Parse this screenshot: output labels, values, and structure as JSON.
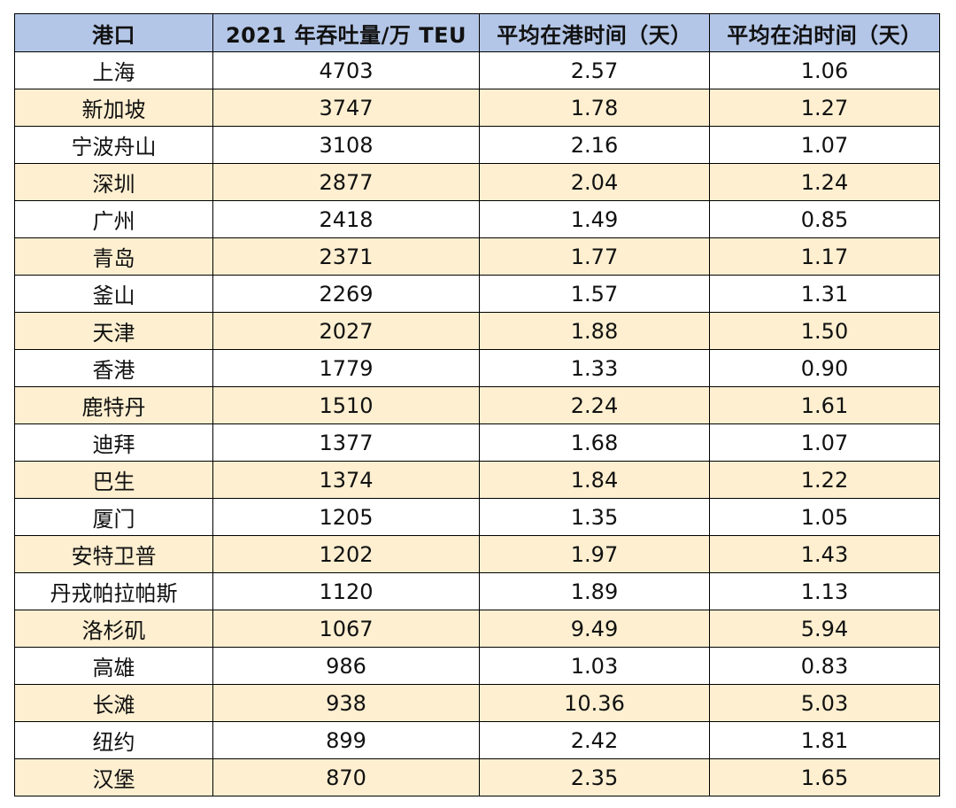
{
  "table": {
    "headers": [
      "港口",
      "2021 年吞吐量/万 TEU",
      "平均在港时间（天）",
      "平均在泊时间（天）"
    ],
    "rows": [
      [
        "上海",
        "4703",
        "2.57",
        "1.06"
      ],
      [
        "新加坡",
        "3747",
        "1.78",
        "1.27"
      ],
      [
        "宁波舟山",
        "3108",
        "2.16",
        "1.07"
      ],
      [
        "深圳",
        "2877",
        "2.04",
        "1.24"
      ],
      [
        "广州",
        "2418",
        "1.49",
        "0.85"
      ],
      [
        "青岛",
        "2371",
        "1.77",
        "1.17"
      ],
      [
        "釜山",
        "2269",
        "1.57",
        "1.31"
      ],
      [
        "天津",
        "2027",
        "1.88",
        "1.50"
      ],
      [
        "香港",
        "1779",
        "1.33",
        "0.90"
      ],
      [
        "鹿特丹",
        "1510",
        "2.24",
        "1.61"
      ],
      [
        "迪拜",
        "1377",
        "1.68",
        "1.07"
      ],
      [
        "巴生",
        "1374",
        "1.84",
        "1.22"
      ],
      [
        "厦门",
        "1205",
        "1.35",
        "1.05"
      ],
      [
        "安特卫普",
        "1202",
        "1.97",
        "1.43"
      ],
      [
        "丹戎帕拉帕斯",
        "1120",
        "1.89",
        "1.13"
      ],
      [
        "洛杉矶",
        "1067",
        "9.49",
        "5.94"
      ],
      [
        "高雄",
        "986",
        "1.03",
        "0.83"
      ],
      [
        "长滩",
        "938",
        "10.36",
        "5.03"
      ],
      [
        "纽约",
        "899",
        "2.42",
        "1.81"
      ],
      [
        "汉堡",
        "870",
        "2.35",
        "1.65"
      ]
    ]
  },
  "colors": {
    "header_bg": "#b4c6e7",
    "stripe_bg": "#fdefd0",
    "row_bg": "#ffffff",
    "border": "#000000"
  }
}
